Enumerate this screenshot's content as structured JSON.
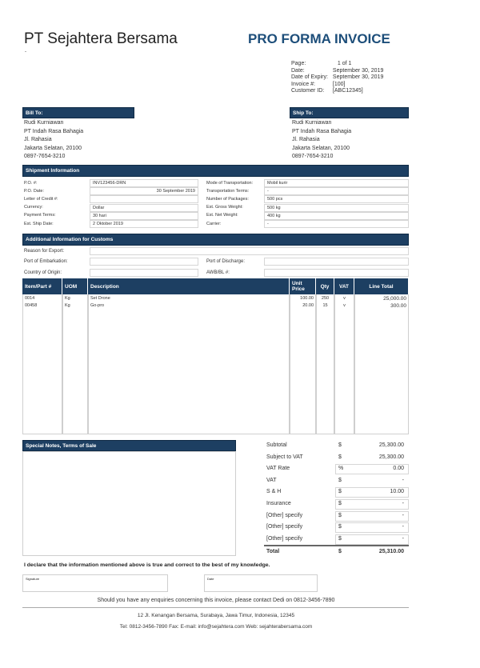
{
  "company": {
    "name": "PT Sejahtera Bersama",
    "tagline": "-"
  },
  "doc_title": "PRO FORMA INVOICE",
  "meta": [
    {
      "label": "Page:",
      "value": "1 of  1"
    },
    {
      "label": "Date:",
      "value": "September 30, 2019"
    },
    {
      "label": "Date of Expiry:",
      "value": "September 30, 2019"
    },
    {
      "label": "Invoice #:",
      "value": "[100]"
    },
    {
      "label": "Customer ID:",
      "value": "[ABC12345]"
    }
  ],
  "bill_to": {
    "title": "Bill To:",
    "lines": [
      "Rudi Kurniawan",
      "PT Indah Rasa Bahagia",
      "Jl. Rahasia",
      "Jakarta Selatan, 20100",
      "0897-7654-3210"
    ]
  },
  "ship_to": {
    "title": "Ship To:",
    "lines": [
      "Rudi Kurniawan",
      "PT Indah Rasa Bahagia",
      "Jl. Rahasia",
      "Jakarta Selatan, 20100",
      "0897-7654-3210"
    ]
  },
  "shipment": {
    "title": "Shipment Information",
    "left": [
      {
        "label": "P.O. #:",
        "value": "INV123456-DRN"
      },
      {
        "label": "P.O. Date:",
        "value": "30 September 2019"
      },
      {
        "label": "Letter of Credit #:",
        "value": ""
      },
      {
        "label": "Currency:",
        "value": "Dollar"
      },
      {
        "label": "Payment Terms:",
        "value": "30 hari"
      },
      {
        "label": "Est. Ship Date:",
        "value": "2 Oktober 2019"
      }
    ],
    "right": [
      {
        "label": "Mode of Transportation:",
        "value": "Mobil kurir"
      },
      {
        "label": "Transportation Terms:",
        "value": "-"
      },
      {
        "label": "Number of Packages:",
        "value": "500 pcs"
      },
      {
        "label": "Est. Gross Weight:",
        "value": "500 kg"
      },
      {
        "label": "Est. Net Weight:",
        "value": "400 kg"
      },
      {
        "label": "Carrier:",
        "value": "-"
      }
    ]
  },
  "customs": {
    "title": "Additional Information for Customs",
    "reason_label": "Reason for Export:",
    "reason": "",
    "embark_label": "Port of Embarkation:",
    "embark": "",
    "discharge_label": "Port of Discharge:",
    "discharge": "",
    "origin_label": "Country of Origin:",
    "origin": "",
    "awb_label": "AWB/BL #:",
    "awb": ""
  },
  "items": {
    "headers": [
      "Item/Part #",
      "UOM",
      "Description",
      "Unit Price",
      "Qty",
      "VAT",
      "Line Total"
    ],
    "rows": [
      [
        "0014",
        "Kg",
        "Set Drone",
        "100.00",
        "250",
        "v",
        "25,000.00"
      ],
      [
        "00458",
        "Kg",
        "Go-pro",
        "20.00",
        "15",
        "v",
        "300.00"
      ]
    ]
  },
  "notes": {
    "title": "Special Notes, Terms of Sale",
    "text": ""
  },
  "totals": [
    {
      "label": "Subtotal",
      "cur": "$",
      "value": "25,300.00"
    },
    {
      "label": "Subject to VAT",
      "cur": "$",
      "value": "25,300.00"
    },
    {
      "label": "VAT Rate",
      "cur": "%",
      "value": "0.00"
    },
    {
      "label": "VAT",
      "cur": "$",
      "value": "-"
    },
    {
      "label": "S & H",
      "cur": "$",
      "value": "10.00"
    },
    {
      "label": "Insurance",
      "cur": "$",
      "value": "-"
    },
    {
      "label": "[Other] specify",
      "cur": "$",
      "value": "-"
    },
    {
      "label": "[Other] specify",
      "cur": "$",
      "value": "-"
    },
    {
      "label": "[Other] specify",
      "cur": "$",
      "value": "-"
    },
    {
      "label": "Total",
      "cur": "$",
      "value": "25,310.00"
    }
  ],
  "declaration": "I declare that the information mentioned above is true and correct to the best of my knowledge.",
  "signature_label": "Signature",
  "date_label": "Date",
  "enquiry": "Should you have any enquiries concerning this invoice, please contact Dedi on 0812-3456-7890",
  "footer": {
    "address": "12 Jl. Kenangan Bersama, Surabaya, Jawa Timur, Indonesia, 12345",
    "contact": "Tel: 0812-3456-7890 Fax:  E-mail: info@sejahtera.com Web: sejahterabersama.com"
  },
  "colors": {
    "header_bar": "#1d3f62",
    "title": "#1d4e7a"
  }
}
